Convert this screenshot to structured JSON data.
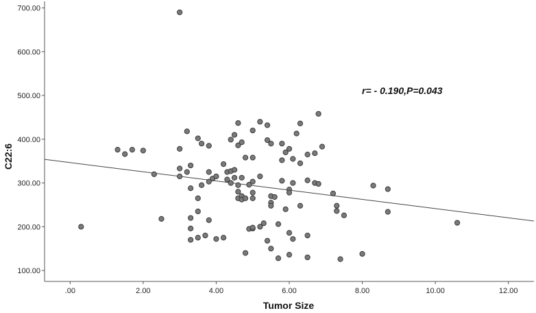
{
  "chart_data": {
    "type": "scatter",
    "title": "",
    "xlabel": "Tumor Size",
    "ylabel": "C22:6",
    "xlim": [
      -0.7,
      12.7
    ],
    "ylim": [
      75,
      715
    ],
    "x_ticks": [
      ".00",
      "2.00",
      "4.00",
      "6.00",
      "8.00",
      "10.00",
      "12.00"
    ],
    "x_tick_values": [
      0,
      2,
      4,
      6,
      8,
      10,
      12
    ],
    "y_ticks": [
      "100.00",
      "200.00",
      "300.00",
      "400.00",
      "500.00",
      "600.00",
      "700.00"
    ],
    "y_tick_values": [
      100,
      200,
      300,
      400,
      500,
      600,
      700
    ],
    "annotation": "r= - 0.190,P=0.043",
    "fit_line": {
      "x": [
        -0.7,
        12.7
      ],
      "y": [
        354,
        213
      ]
    },
    "grid": false,
    "point_color": "#7a7a7a",
    "points": [
      [
        0.3,
        200
      ],
      [
        1.3,
        376
      ],
      [
        1.5,
        366
      ],
      [
        1.7,
        376
      ],
      [
        2.0,
        374
      ],
      [
        2.3,
        320
      ],
      [
        2.5,
        218
      ],
      [
        3.0,
        690
      ],
      [
        3.0,
        378
      ],
      [
        3.0,
        333
      ],
      [
        3.0,
        315
      ],
      [
        3.2,
        418
      ],
      [
        3.2,
        325
      ],
      [
        3.3,
        220
      ],
      [
        3.3,
        196
      ],
      [
        3.3,
        170
      ],
      [
        3.3,
        340
      ],
      [
        3.3,
        288
      ],
      [
        3.5,
        402
      ],
      [
        3.5,
        265
      ],
      [
        3.5,
        235
      ],
      [
        3.5,
        175
      ],
      [
        3.6,
        390
      ],
      [
        3.6,
        295
      ],
      [
        3.7,
        180
      ],
      [
        3.8,
        385
      ],
      [
        3.8,
        325
      ],
      [
        3.8,
        303
      ],
      [
        3.8,
        215
      ],
      [
        3.9,
        310
      ],
      [
        4.0,
        315
      ],
      [
        4.0,
        172
      ],
      [
        4.2,
        343
      ],
      [
        4.2,
        175
      ],
      [
        4.3,
        325
      ],
      [
        4.3,
        308
      ],
      [
        4.4,
        399
      ],
      [
        4.4,
        327
      ],
      [
        4.4,
        300
      ],
      [
        4.5,
        410
      ],
      [
        4.5,
        330
      ],
      [
        4.5,
        312
      ],
      [
        4.6,
        437
      ],
      [
        4.6,
        386
      ],
      [
        4.6,
        295
      ],
      [
        4.6,
        280
      ],
      [
        4.6,
        265
      ],
      [
        4.7,
        393
      ],
      [
        4.7,
        312
      ],
      [
        4.7,
        270
      ],
      [
        4.7,
        262
      ],
      [
        4.8,
        358
      ],
      [
        4.8,
        265
      ],
      [
        4.8,
        140
      ],
      [
        4.9,
        296
      ],
      [
        4.9,
        195
      ],
      [
        5.0,
        420
      ],
      [
        5.0,
        358
      ],
      [
        5.0,
        303
      ],
      [
        5.0,
        278
      ],
      [
        5.0,
        265
      ],
      [
        5.0,
        196
      ],
      [
        5.0,
        198
      ],
      [
        5.2,
        440
      ],
      [
        5.2,
        315
      ],
      [
        5.2,
        200
      ],
      [
        5.3,
        208
      ],
      [
        5.4,
        432
      ],
      [
        5.4,
        398
      ],
      [
        5.4,
        168
      ],
      [
        5.5,
        390
      ],
      [
        5.5,
        270
      ],
      [
        5.5,
        255
      ],
      [
        5.5,
        248
      ],
      [
        5.5,
        150
      ],
      [
        5.6,
        268
      ],
      [
        5.7,
        206
      ],
      [
        5.7,
        128
      ],
      [
        5.8,
        390
      ],
      [
        5.8,
        352
      ],
      [
        5.8,
        305
      ],
      [
        5.9,
        370
      ],
      [
        5.9,
        240
      ],
      [
        6.0,
        378
      ],
      [
        6.0,
        285
      ],
      [
        6.0,
        278
      ],
      [
        6.0,
        186
      ],
      [
        6.0,
        136
      ],
      [
        6.1,
        355
      ],
      [
        6.1,
        300
      ],
      [
        6.1,
        172
      ],
      [
        6.2,
        413
      ],
      [
        6.3,
        436
      ],
      [
        6.3,
        345
      ],
      [
        6.3,
        248
      ],
      [
        6.5,
        365
      ],
      [
        6.5,
        306
      ],
      [
        6.5,
        180
      ],
      [
        6.5,
        130
      ],
      [
        6.7,
        368
      ],
      [
        6.7,
        300
      ],
      [
        6.8,
        458
      ],
      [
        6.8,
        298
      ],
      [
        6.9,
        383
      ],
      [
        7.2,
        276
      ],
      [
        7.3,
        248
      ],
      [
        7.3,
        236
      ],
      [
        7.4,
        126
      ],
      [
        7.5,
        226
      ],
      [
        8.0,
        138
      ],
      [
        8.3,
        294
      ],
      [
        8.7,
        286
      ],
      [
        8.7,
        234
      ],
      [
        10.6,
        209
      ]
    ]
  }
}
